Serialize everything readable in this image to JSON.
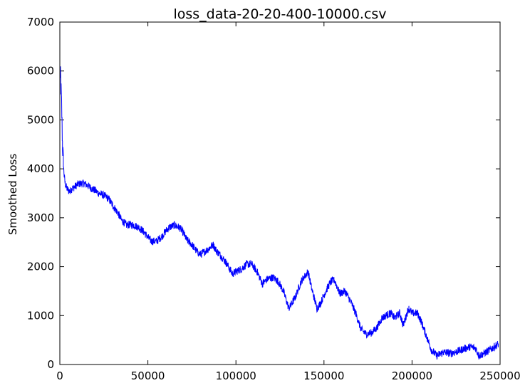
{
  "chart_data": {
    "type": "line",
    "title": "loss_data-20-20-400-10000.csv",
    "xlabel": "",
    "ylabel": "Smoothed Loss",
    "xlim": [
      0,
      250000
    ],
    "ylim": [
      0,
      7000
    ],
    "grid": false,
    "legend": "none",
    "x_ticks": [
      0,
      50000,
      100000,
      150000,
      200000,
      250000
    ],
    "x_tick_labels": [
      "0",
      "50000",
      "100000",
      "150000",
      "200000",
      "250000"
    ],
    "y_ticks": [
      0,
      1000,
      2000,
      3000,
      4000,
      5000,
      6000,
      7000
    ],
    "y_tick_labels": [
      "0",
      "1000",
      "2000",
      "3000",
      "4000",
      "5000",
      "6000",
      "7000"
    ],
    "series": [
      {
        "color": "#0000ff",
        "noise": 80,
        "x": [
          0,
          500,
          1000,
          1500,
          2000,
          2500,
          3000,
          4000,
          5000,
          6000,
          7000,
          8000,
          10000,
          12000,
          14000,
          16000,
          18000,
          20000,
          22000,
          25000,
          28000,
          30000,
          33000,
          35000,
          38000,
          40000,
          42000,
          45000,
          48000,
          50000,
          52000,
          55000,
          58000,
          60000,
          62000,
          65000,
          68000,
          70000,
          72000,
          75000,
          78000,
          80000,
          82000,
          85000,
          87000,
          89000,
          92000,
          95000,
          98000,
          100000,
          103000,
          106000,
          109000,
          112000,
          115000,
          118000,
          121000,
          124000,
          127000,
          130000,
          131000,
          134000,
          137000,
          140000,
          141000,
          143000,
          146000,
          148000,
          151000,
          154000,
          156000,
          159000,
          162000,
          165000,
          168000,
          171000,
          174000,
          177000,
          180000,
          183000,
          185000,
          188000,
          190000,
          193000,
          195000,
          198000,
          200000,
          203000,
          205000,
          208000,
          211000,
          214000,
          218000,
          222000,
          226000,
          230000,
          233000,
          236000,
          238000,
          241000,
          245000,
          249000
        ],
        "y": [
          6000,
          5800,
          5300,
          4500,
          4100,
          3850,
          3700,
          3600,
          3550,
          3550,
          3600,
          3620,
          3680,
          3700,
          3700,
          3650,
          3600,
          3560,
          3500,
          3460,
          3380,
          3250,
          3100,
          2950,
          2850,
          2860,
          2850,
          2800,
          2700,
          2600,
          2520,
          2520,
          2620,
          2720,
          2800,
          2850,
          2800,
          2700,
          2550,
          2450,
          2300,
          2250,
          2300,
          2380,
          2450,
          2320,
          2200,
          2050,
          1850,
          1900,
          1950,
          2050,
          2050,
          1900,
          1650,
          1750,
          1780,
          1700,
          1500,
          1150,
          1200,
          1400,
          1700,
          1850,
          1900,
          1550,
          1150,
          1250,
          1500,
          1700,
          1720,
          1450,
          1500,
          1300,
          1050,
          720,
          620,
          650,
          750,
          950,
          1000,
          1050,
          950,
          1050,
          800,
          1150,
          1050,
          1050,
          900,
          600,
          300,
          180,
          250,
          230,
          270,
          330,
          360,
          340,
          180,
          230,
          320,
          420
        ]
      }
    ]
  }
}
